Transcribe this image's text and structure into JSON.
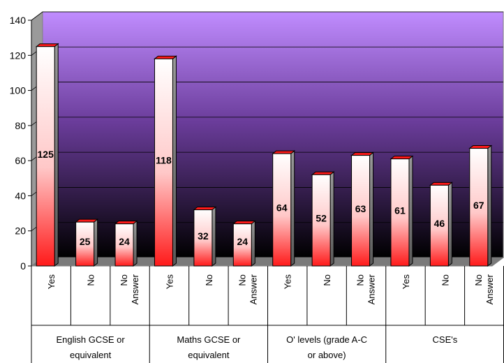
{
  "chart_data": {
    "type": "bar",
    "title": "",
    "xlabel": "",
    "ylabel": "",
    "ylim": [
      0,
      140
    ],
    "yticks": [
      0,
      20,
      40,
      60,
      80,
      100,
      120,
      140
    ],
    "grid": true,
    "legend": "none",
    "style": "3d",
    "groups": [
      {
        "label": "English GCSE or equivalent",
        "categories": [
          "Yes",
          "No",
          "No Answer"
        ],
        "values": [
          125,
          25,
          24
        ]
      },
      {
        "label": "Maths GCSE or equivalent",
        "categories": [
          "Yes",
          "No",
          "No Answer"
        ],
        "values": [
          118,
          32,
          24
        ]
      },
      {
        "label": "O' levels (grade A-C or above)",
        "categories": [
          "Yes",
          "No",
          "No Answer"
        ],
        "values": [
          64,
          52,
          63
        ]
      },
      {
        "label": "CSE's",
        "categories": [
          "Yes",
          "No",
          "No Answer"
        ],
        "values": [
          61,
          46,
          67
        ]
      }
    ],
    "colors": {
      "wall_top": "#c08cff",
      "wall_bottom": "#000000",
      "bar_top": "#ffffff",
      "bar_bottom": "#ff1a1a"
    }
  }
}
